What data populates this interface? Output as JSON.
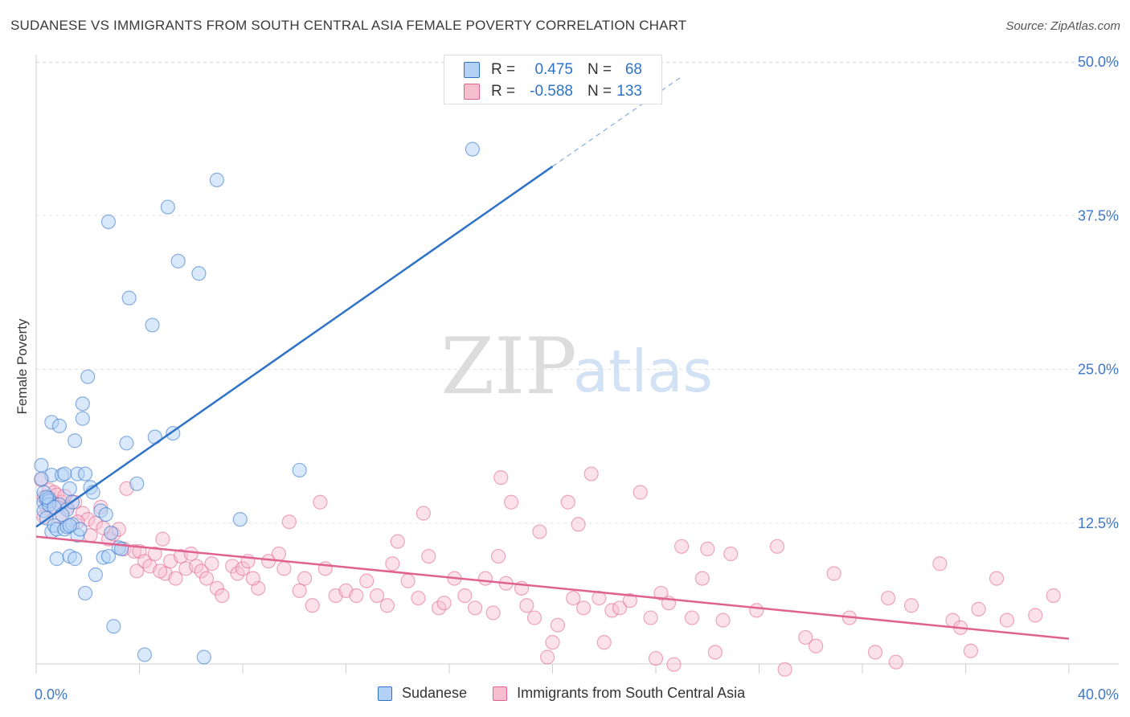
{
  "header": {
    "title": "SUDANESE VS IMMIGRANTS FROM SOUTH CENTRAL ASIA FEMALE POVERTY CORRELATION CHART",
    "source": "Source: ZipAtlas.com"
  },
  "watermark": {
    "part1": "ZIP",
    "part2": "atlas"
  },
  "colors": {
    "blue": "#2f73c8",
    "blue_fill": "#b3d1f5",
    "pink": "#e0628f",
    "pink_fill": "#f6bfd0",
    "tick_text": "#3f78c9"
  },
  "stats": [
    {
      "r_label": "R =",
      "r_value": "0.475",
      "n_label": "N =",
      "n_value": "68"
    },
    {
      "r_label": "R =",
      "r_value": "-0.588",
      "n_label": "N =",
      "n_value": "133"
    }
  ],
  "chart_data": {
    "type": "scatter",
    "title": "SUDANESE VS IMMIGRANTS FROM SOUTH CENTRAL ASIA FEMALE POVERTY CORRELATION CHART",
    "xlabel": "",
    "ylabel": "Female Poverty",
    "xlim": [
      0,
      40
    ],
    "ylim": [
      0,
      50
    ],
    "x_tick_labels": [
      "0.0%",
      "40.0%"
    ],
    "y_ticks": [
      12.5,
      25.0,
      37.5,
      50.0
    ],
    "y_tick_labels": [
      "12.5%",
      "25.0%",
      "37.5%",
      "50.0%"
    ],
    "grid": true,
    "legend_position": "bottom-center",
    "series": [
      {
        "name": "Sudanese",
        "color": "#2f73c8",
        "trend": {
          "x": [
            0.0,
            20.0
          ],
          "y": [
            12.2,
            41.5
          ],
          "dashed_extension": {
            "x": [
              20.0,
              25.0
            ],
            "y": [
              41.5,
              48.8
            ]
          }
        },
        "points": [
          [
            0.2,
            17.2
          ],
          [
            0.3,
            15.0
          ],
          [
            0.3,
            14.2
          ],
          [
            0.3,
            13.5
          ],
          [
            0.4,
            14.4
          ],
          [
            0.4,
            12.9
          ],
          [
            0.5,
            14.5
          ],
          [
            0.5,
            14.3
          ],
          [
            0.6,
            11.8
          ],
          [
            0.6,
            16.4
          ],
          [
            0.6,
            20.7
          ],
          [
            0.7,
            12.3
          ],
          [
            0.8,
            9.6
          ],
          [
            0.8,
            12.0
          ],
          [
            0.9,
            20.4
          ],
          [
            0.9,
            14.0
          ],
          [
            1.0,
            16.4
          ],
          [
            1.1,
            16.5
          ],
          [
            1.1,
            12.0
          ],
          [
            1.2,
            13.6
          ],
          [
            1.2,
            12.2
          ],
          [
            1.3,
            9.8
          ],
          [
            1.3,
            15.3
          ],
          [
            1.4,
            12.4
          ],
          [
            1.4,
            14.2
          ],
          [
            1.5,
            19.2
          ],
          [
            1.5,
            9.6
          ],
          [
            1.6,
            16.5
          ],
          [
            1.6,
            11.5
          ],
          [
            1.7,
            12.0
          ],
          [
            1.8,
            21.0
          ],
          [
            1.8,
            22.2
          ],
          [
            1.9,
            16.5
          ],
          [
            1.9,
            6.8
          ],
          [
            2.0,
            24.4
          ],
          [
            2.1,
            15.4
          ],
          [
            2.2,
            15.0
          ],
          [
            2.3,
            8.3
          ],
          [
            2.5,
            13.5
          ],
          [
            2.6,
            9.7
          ],
          [
            2.7,
            13.2
          ],
          [
            2.8,
            9.8
          ],
          [
            2.8,
            37.0
          ],
          [
            2.9,
            11.7
          ],
          [
            3.0,
            4.1
          ],
          [
            3.2,
            10.5
          ],
          [
            3.3,
            10.4
          ],
          [
            3.5,
            19.0
          ],
          [
            3.6,
            30.8
          ],
          [
            3.9,
            15.7
          ],
          [
            4.2,
            1.8
          ],
          [
            4.5,
            28.6
          ],
          [
            4.6,
            19.5
          ],
          [
            5.1,
            38.2
          ],
          [
            5.3,
            19.8
          ],
          [
            5.5,
            33.8
          ],
          [
            6.3,
            32.8
          ],
          [
            6.5,
            1.6
          ],
          [
            7.0,
            40.4
          ],
          [
            7.9,
            12.8
          ],
          [
            10.2,
            16.8
          ],
          [
            16.9,
            42.9
          ],
          [
            0.5,
            14.0
          ],
          [
            0.7,
            13.8
          ],
          [
            1.0,
            13.2
          ],
          [
            1.3,
            12.3
          ],
          [
            0.4,
            14.6
          ],
          [
            0.2,
            16.1
          ]
        ]
      },
      {
        "name": "Immigrants from South Central Asia",
        "color": "#e0628f",
        "trend": {
          "x": [
            0.0,
            40.0
          ],
          "y": [
            11.4,
            3.1
          ]
        },
        "points": [
          [
            0.2,
            16.0
          ],
          [
            0.3,
            14.6
          ],
          [
            0.5,
            15.2
          ],
          [
            0.6,
            14.3
          ],
          [
            0.7,
            15.0
          ],
          [
            0.8,
            14.8
          ],
          [
            1.0,
            14.2
          ],
          [
            1.2,
            13.8
          ],
          [
            1.5,
            14.2
          ],
          [
            1.8,
            13.3
          ],
          [
            2.0,
            12.8
          ],
          [
            2.3,
            12.5
          ],
          [
            2.5,
            13.8
          ],
          [
            2.8,
            11.2
          ],
          [
            3.0,
            11.6
          ],
          [
            3.2,
            12.0
          ],
          [
            3.4,
            10.4
          ],
          [
            3.5,
            15.3
          ],
          [
            3.8,
            10.2
          ],
          [
            3.9,
            8.6
          ],
          [
            4.0,
            10.2
          ],
          [
            4.2,
            9.4
          ],
          [
            4.4,
            9.0
          ],
          [
            4.6,
            10.0
          ],
          [
            4.9,
            11.2
          ],
          [
            5.0,
            8.4
          ],
          [
            5.2,
            9.4
          ],
          [
            5.4,
            8.0
          ],
          [
            5.6,
            9.8
          ],
          [
            5.8,
            8.8
          ],
          [
            6.0,
            10.0
          ],
          [
            6.2,
            9.0
          ],
          [
            6.4,
            8.6
          ],
          [
            6.8,
            9.2
          ],
          [
            7.0,
            7.2
          ],
          [
            7.2,
            6.6
          ],
          [
            7.6,
            9.0
          ],
          [
            7.8,
            8.4
          ],
          [
            8.0,
            8.8
          ],
          [
            8.2,
            9.4
          ],
          [
            8.6,
            7.2
          ],
          [
            9.0,
            9.4
          ],
          [
            9.4,
            10.0
          ],
          [
            9.6,
            8.8
          ],
          [
            9.8,
            12.6
          ],
          [
            10.2,
            7.0
          ],
          [
            10.4,
            8.0
          ],
          [
            10.7,
            5.8
          ],
          [
            11.0,
            14.2
          ],
          [
            11.2,
            8.8
          ],
          [
            11.6,
            6.6
          ],
          [
            12.0,
            7.0
          ],
          [
            12.4,
            6.6
          ],
          [
            12.8,
            7.8
          ],
          [
            13.2,
            6.6
          ],
          [
            13.6,
            5.8
          ],
          [
            13.8,
            9.2
          ],
          [
            14.0,
            11.0
          ],
          [
            14.4,
            7.8
          ],
          [
            14.8,
            6.4
          ],
          [
            15.0,
            13.3
          ],
          [
            15.2,
            9.8
          ],
          [
            15.6,
            5.6
          ],
          [
            15.8,
            6.0
          ],
          [
            16.2,
            8.0
          ],
          [
            16.6,
            6.6
          ],
          [
            17.0,
            5.6
          ],
          [
            17.4,
            8.0
          ],
          [
            17.7,
            5.2
          ],
          [
            17.9,
            9.8
          ],
          [
            18.0,
            16.2
          ],
          [
            18.2,
            7.6
          ],
          [
            18.4,
            14.2
          ],
          [
            18.8,
            7.2
          ],
          [
            19.0,
            5.8
          ],
          [
            19.3,
            4.8
          ],
          [
            19.5,
            11.8
          ],
          [
            19.8,
            1.6
          ],
          [
            20.0,
            2.8
          ],
          [
            20.2,
            4.2
          ],
          [
            20.6,
            14.2
          ],
          [
            20.8,
            6.4
          ],
          [
            21.0,
            12.4
          ],
          [
            21.2,
            5.6
          ],
          [
            21.5,
            16.5
          ],
          [
            21.8,
            6.4
          ],
          [
            22.0,
            2.8
          ],
          [
            22.3,
            5.4
          ],
          [
            22.6,
            5.6
          ],
          [
            23.0,
            6.2
          ],
          [
            23.4,
            15.0
          ],
          [
            23.8,
            4.8
          ],
          [
            24.0,
            1.5
          ],
          [
            24.2,
            6.8
          ],
          [
            24.5,
            6.0
          ],
          [
            24.7,
            1.0
          ],
          [
            25.0,
            10.6
          ],
          [
            25.4,
            4.8
          ],
          [
            25.8,
            8.0
          ],
          [
            26.0,
            10.4
          ],
          [
            26.3,
            2.0
          ],
          [
            26.6,
            4.6
          ],
          [
            26.9,
            10.0
          ],
          [
            27.9,
            5.4
          ],
          [
            28.7,
            10.6
          ],
          [
            29.0,
            0.6
          ],
          [
            29.8,
            3.2
          ],
          [
            30.2,
            2.5
          ],
          [
            30.9,
            8.4
          ],
          [
            31.5,
            4.8
          ],
          [
            32.5,
            2.0
          ],
          [
            33.0,
            6.4
          ],
          [
            33.3,
            1.2
          ],
          [
            33.9,
            5.8
          ],
          [
            35.0,
            9.2
          ],
          [
            35.5,
            4.6
          ],
          [
            35.8,
            4.0
          ],
          [
            36.2,
            2.1
          ],
          [
            36.5,
            5.5
          ],
          [
            37.2,
            8.0
          ],
          [
            37.6,
            4.6
          ],
          [
            38.7,
            5.0
          ],
          [
            39.4,
            6.6
          ],
          [
            0.4,
            13.7
          ],
          [
            0.9,
            13.0
          ],
          [
            1.6,
            12.6
          ],
          [
            2.6,
            12.1
          ],
          [
            0.3,
            13.0
          ],
          [
            1.1,
            14.7
          ],
          [
            2.1,
            11.5
          ],
          [
            4.8,
            8.6
          ],
          [
            6.6,
            8.0
          ],
          [
            8.4,
            8.0
          ]
        ]
      }
    ]
  }
}
